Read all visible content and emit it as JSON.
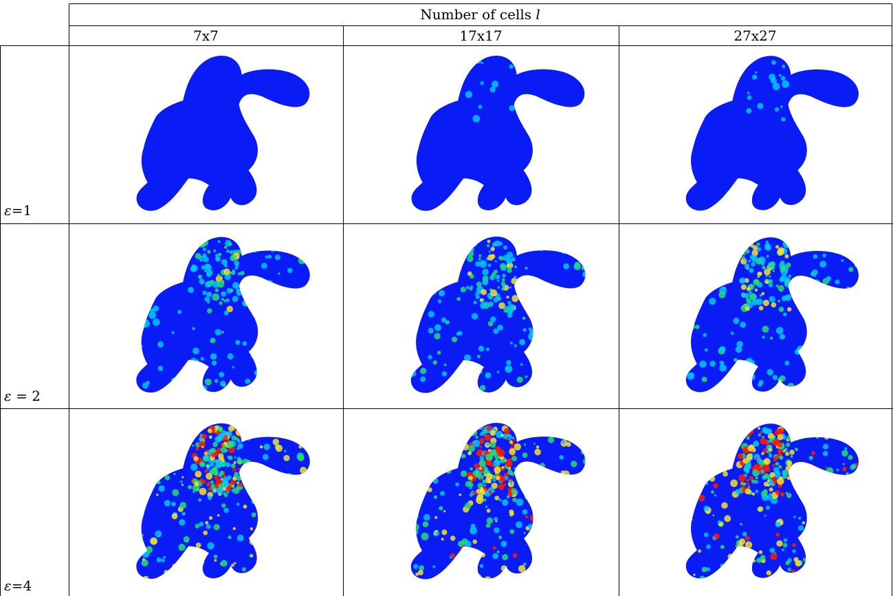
{
  "header": {
    "title_prefix": "Number of cells",
    "title_var": "l",
    "columns": [
      "7x7",
      "17x17",
      "27x27"
    ]
  },
  "rows": [
    {
      "symbol": "ε",
      "rest": "=1",
      "level": 0.12
    },
    {
      "symbol": "ε",
      "rest": " = 2",
      "level": 0.45
    },
    {
      "symbol": "ε",
      "rest": "=4",
      "level": 0.8
    }
  ],
  "colormap": {
    "low": "#0a1cf5",
    "mid_low": "#00c8ff",
    "mid": "#22e070",
    "mid_high": "#f6e22a",
    "high": "#ff1a00"
  },
  "figure_subject": "gorilla-mesh"
}
